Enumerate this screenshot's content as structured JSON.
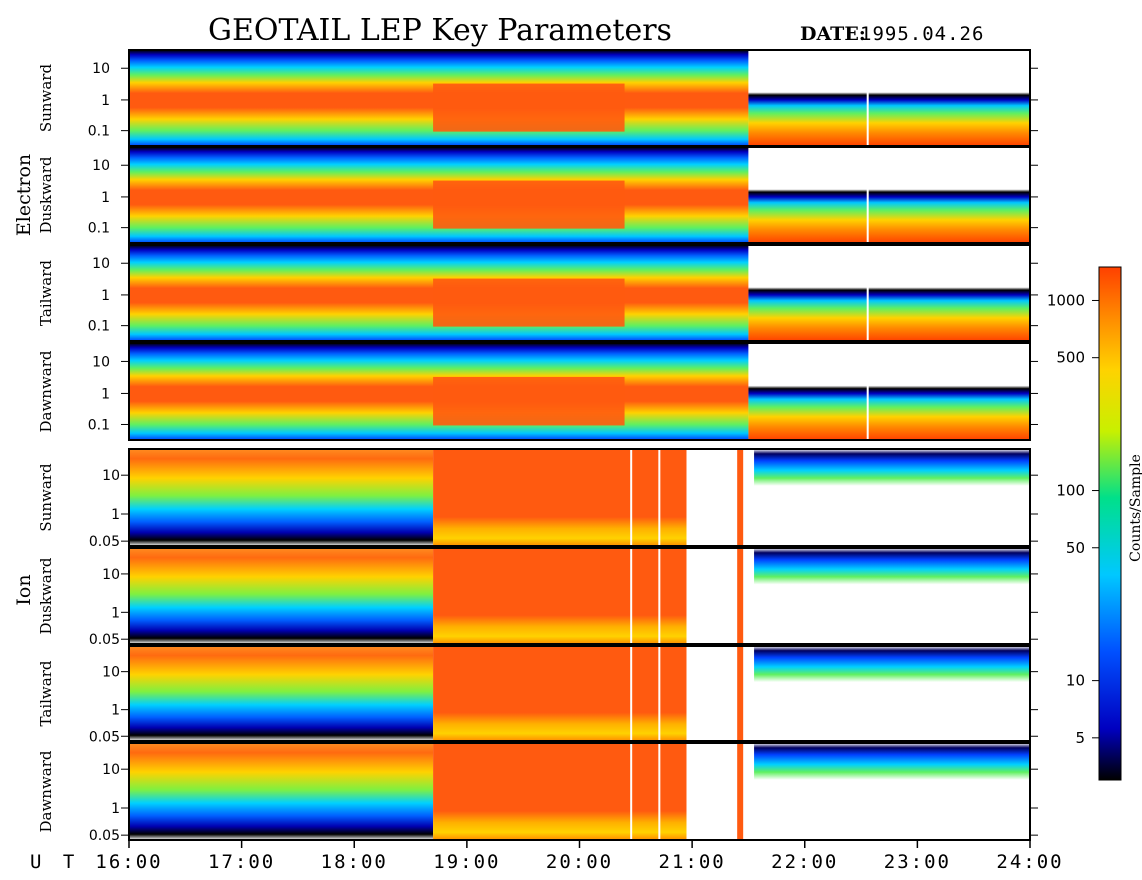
{
  "title": "GEOTAIL LEP Key Parameters",
  "date_label": "DATE:",
  "date_value": "1995.04.26",
  "ut_label": "U T",
  "colorbar": {
    "label": "Counts/Sample",
    "scale": "log",
    "ticks": [
      "1000",
      "500",
      "100",
      "50",
      "10",
      "5"
    ],
    "tick_values": [
      1000,
      500,
      100,
      50,
      10,
      5
    ],
    "range": [
      3,
      1500
    ],
    "colors": [
      "#000000",
      "#0000c0",
      "#0050ff",
      "#00c8ff",
      "#00e08a",
      "#c8f000",
      "#ffd200",
      "#ff8c00",
      "#ff4000"
    ]
  },
  "chart_data": {
    "type": "heatmap",
    "title": "GEOTAIL LEP Key Parameters",
    "x_axis": {
      "label": "U T",
      "range": [
        "16:00",
        "24:00"
      ],
      "ticks": [
        "16:00",
        "17:00",
        "18:00",
        "19:00",
        "20:00",
        "21:00",
        "22:00",
        "23:00",
        "24:00"
      ]
    },
    "groups": [
      {
        "name": "Electron",
        "y_scale": "log",
        "y_ticks": [
          "10",
          "1",
          "0.1"
        ],
        "y_tick_values": [
          10,
          1,
          0.1
        ],
        "panels": [
          {
            "name": "Sunward"
          },
          {
            "name": "Duskward"
          },
          {
            "name": "Tailward"
          },
          {
            "name": "Dawnward"
          }
        ]
      },
      {
        "name": "Ion",
        "y_scale": "log",
        "y_ticks": [
          "10",
          "1",
          "0.05"
        ],
        "y_tick_values": [
          10,
          1,
          0.05
        ],
        "panels": [
          {
            "name": "Sunward"
          },
          {
            "name": "Duskward"
          },
          {
            "name": "Tailward"
          },
          {
            "name": "Dawnward"
          }
        ]
      }
    ]
  }
}
